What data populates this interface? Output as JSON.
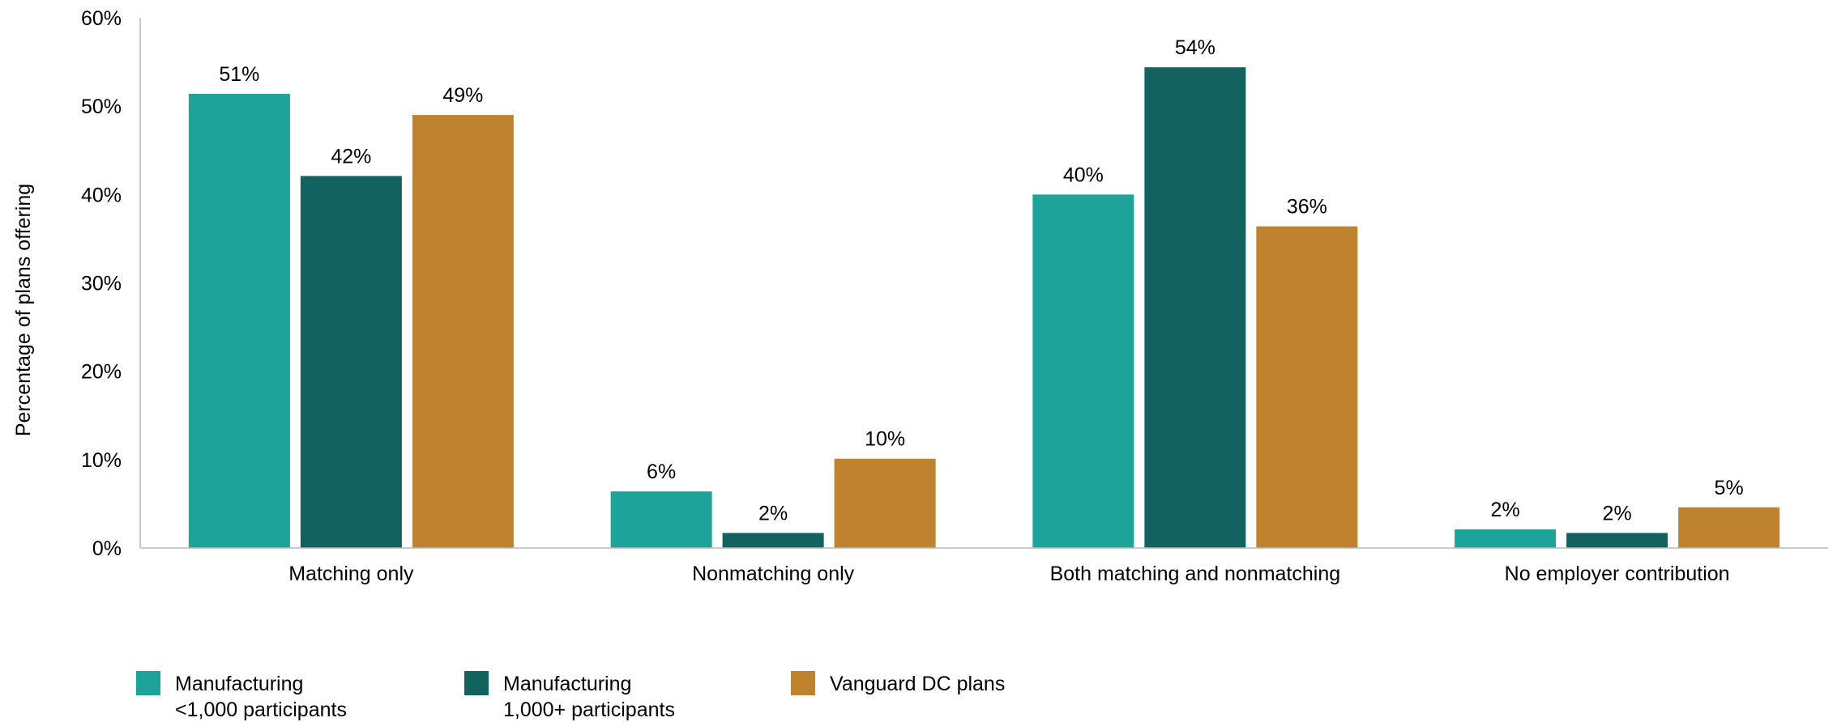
{
  "chart_data": {
    "type": "bar",
    "title": "",
    "xlabel": "",
    "ylabel": "Percentage of plans offering",
    "ylim": [
      0,
      60
    ],
    "yticks": [
      0,
      10,
      20,
      30,
      40,
      50,
      60
    ],
    "ytick_labels": [
      "0%",
      "10%",
      "20%",
      "30%",
      "40%",
      "50%",
      "60%"
    ],
    "grid": false,
    "legend_position": "bottom-left",
    "categories": [
      "Matching only",
      "Nonmatching only",
      "Both matching and nonmatching",
      "No employer contribution"
    ],
    "series": [
      {
        "name": "Manufacturing <1,000 participants",
        "legend_lines": [
          "Manufacturing",
          "<1,000 participants"
        ],
        "color": "#1ea39a",
        "values": [
          51.4,
          6.4,
          40.0,
          2.1
        ],
        "labels": [
          "51%",
          "6%",
          "40%",
          "2%"
        ]
      },
      {
        "name": "Manufacturing 1,000+ participants",
        "legend_lines": [
          "Manufacturing",
          "1,000+ participants"
        ],
        "color": "#126360",
        "values": [
          42.1,
          1.7,
          54.4,
          1.7
        ],
        "labels": [
          "42%",
          "2%",
          "54%",
          "2%"
        ]
      },
      {
        "name": "Vanguard DC plans",
        "legend_lines": [
          "Vanguard DC plans"
        ],
        "color": "#bf822e",
        "values": [
          49.0,
          10.1,
          36.4,
          4.6
        ],
        "labels": [
          "49%",
          "10%",
          "36%",
          "5%"
        ]
      }
    ]
  }
}
